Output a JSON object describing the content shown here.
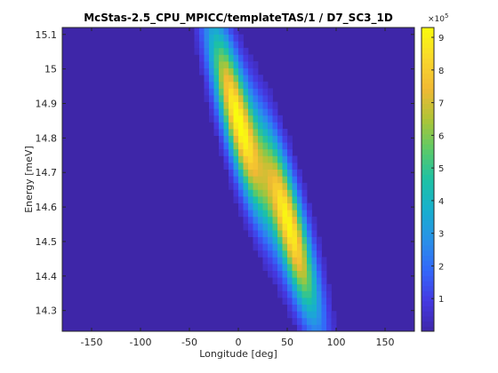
{
  "chart_data": {
    "type": "heatmap",
    "title": "McStas-2.5_CPU_MPICC/templateTAS/1 / D7_SC3_1D",
    "xlabel": "Longitude [deg]",
    "ylabel": "Energy [meV]",
    "xlim": [
      -180,
      180
    ],
    "ylim": [
      14.24,
      15.12
    ],
    "xticks": [
      -150,
      -100,
      -50,
      0,
      50,
      100,
      150
    ],
    "yticks": [
      14.3,
      14.4,
      14.5,
      14.6,
      14.7,
      14.8,
      14.9,
      15,
      15.1
    ],
    "colorbar": {
      "ticks": [
        1,
        2,
        3,
        4,
        5,
        6,
        7,
        8,
        9
      ],
      "exponent_label": "×10",
      "exponent_power": "5",
      "range": [
        0,
        9.3
      ]
    },
    "colormap": "parula",
    "peaks": [
      {
        "energy_center": 14.85,
        "longitude_center": 0,
        "longitude_drift_per_meV": -90,
        "peak_value": 9.3
      },
      {
        "energy_center": 14.55,
        "longitude_center": 52,
        "longitude_drift_per_meV": -90,
        "peak_value": 9.0
      }
    ]
  }
}
